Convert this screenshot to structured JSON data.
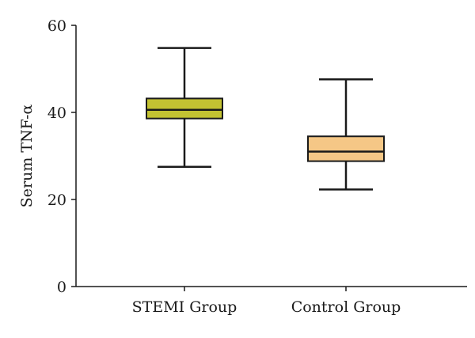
{
  "chart_data": {
    "type": "boxplot",
    "title": "",
    "xlabel": "",
    "ylabel": "Serum TNF-α",
    "ylim": [
      0,
      60
    ],
    "yticks": [
      0,
      20,
      40,
      60
    ],
    "grid": false,
    "categories": [
      "STEMI Group",
      "Control Group"
    ],
    "boxes": [
      {
        "category": "STEMI Group",
        "min": 27.5,
        "q1": 38.6,
        "median": 40.6,
        "q3": 43.2,
        "max": 54.8,
        "color": "#c3c232"
      },
      {
        "category": "Control Group",
        "min": 22.3,
        "q1": 28.8,
        "median": 31.0,
        "q3": 34.5,
        "max": 47.6,
        "color": "#f5c786"
      }
    ]
  }
}
